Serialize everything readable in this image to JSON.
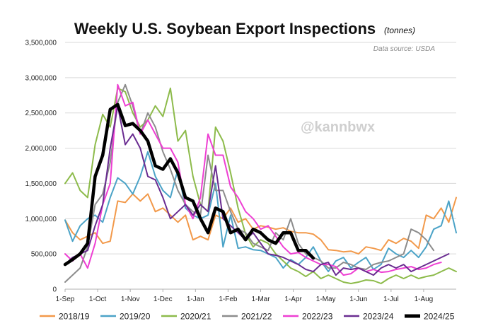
{
  "chart_data": {
    "type": "line",
    "title": "Weekly U.S. Soybean Export Inspections",
    "unit": "(tonnes)",
    "source": "Data source: USDA",
    "watermark": "@kannbwx",
    "x_tick_labels": [
      "1-Sep",
      "1-Oct",
      "1-Nov",
      "1-Dec",
      "1-Jan",
      "1-Feb",
      "1-Mar",
      "1-Apr",
      "1-May",
      "1-Jun",
      "1-Jul",
      "1-Aug"
    ],
    "y_tick_labels": [
      "0",
      "500,000",
      "1,000,000",
      "1,500,000",
      "2,000,000",
      "2,500,000",
      "3,000,000",
      "3,500,000"
    ],
    "ylim": [
      0,
      3500000
    ],
    "week_count": 53,
    "grid": "horizontal",
    "legend_position": "bottom",
    "series": [
      {
        "name": "2018/19",
        "color": "#f2994a",
        "values": [
          980000,
          800000,
          700000,
          750000,
          800000,
          650000,
          680000,
          1250000,
          1230000,
          1350000,
          1250000,
          1350000,
          1100000,
          1150000,
          1050000,
          950000,
          1050000,
          700000,
          750000,
          700000,
          1050000,
          1000000,
          1150000,
          950000,
          1000000,
          850000,
          900000,
          880000,
          850000,
          870000,
          820000,
          800000,
          800000,
          780000,
          700000,
          560000,
          550000,
          530000,
          540000,
          500000,
          600000,
          580000,
          550000,
          700000,
          650000,
          720000,
          680000,
          580000,
          1050000,
          1000000,
          1150000,
          950000,
          1300000
        ]
      },
      {
        "name": "2019/20",
        "color": "#4ba3c7",
        "values": [
          980000,
          680000,
          900000,
          1000000,
          1050000,
          950000,
          1300000,
          1580000,
          1500000,
          1350000,
          1600000,
          1950000,
          1600000,
          1400000,
          1300000,
          1700000,
          1150000,
          1050000,
          1000000,
          1050000,
          1500000,
          600000,
          1050000,
          580000,
          600000,
          560000,
          550000,
          500000,
          450000,
          300000,
          420000,
          350000,
          450000,
          600000,
          400000,
          250000,
          400000,
          450000,
          300000,
          380000,
          450000,
          280000,
          350000,
          580000,
          500000,
          450000,
          550000,
          450000,
          600000,
          850000,
          900000,
          1250000,
          800000
        ]
      },
      {
        "name": "2020/21",
        "color": "#8dbb4b",
        "values": [
          1500000,
          1650000,
          1400000,
          1300000,
          2050000,
          2480000,
          2300000,
          2850000,
          2800000,
          2500000,
          2300000,
          2400000,
          2600000,
          2450000,
          2850000,
          2100000,
          2250000,
          1600000,
          1200000,
          1100000,
          2300000,
          2100000,
          1650000,
          1150000,
          780000,
          600000,
          700000,
          650000,
          500000,
          400000,
          300000,
          250000,
          180000,
          250000,
          150000,
          200000,
          150000,
          100000,
          80000,
          100000,
          130000,
          120000,
          80000,
          150000,
          200000,
          150000,
          200000,
          150000,
          180000,
          200000,
          250000,
          300000,
          250000
        ]
      },
      {
        "name": "2021/22",
        "color": "#8c8c8c",
        "values": [
          100000,
          200000,
          300000,
          600000,
          1200000,
          1350000,
          1800000,
          2650000,
          2900000,
          2600000,
          2200000,
          2500000,
          2300000,
          1950000,
          1700000,
          1400000,
          1200000,
          1100000,
          1050000,
          1900000,
          1400000,
          1400000,
          1100000,
          850000,
          800000,
          650000,
          600000,
          550000,
          800000,
          700000,
          1000000,
          650000,
          500000,
          450000,
          400000,
          300000,
          300000,
          380000,
          350000,
          300000,
          280000,
          350000,
          380000,
          400000,
          450000,
          500000,
          850000,
          800000,
          700000,
          550000
        ]
      },
      {
        "name": "2022/23",
        "color": "#ee3fd3",
        "values": [
          500000,
          400000,
          500000,
          300000,
          650000,
          1200000,
          1500000,
          2900000,
          2600000,
          2650000,
          2200000,
          2400000,
          2200000,
          2000000,
          2000000,
          1800000,
          1200000,
          1000000,
          1300000,
          2200000,
          1900000,
          1900000,
          1450000,
          1300000,
          1100000,
          1000000,
          850000,
          900000,
          750000,
          600000,
          500000,
          520000,
          450000,
          400000,
          350000,
          350000,
          320000,
          200000,
          220000,
          300000,
          250000,
          280000,
          240000,
          250000,
          280000,
          300000,
          320000,
          280000,
          300000,
          350000,
          380000
        ]
      },
      {
        "name": "2023/24",
        "color": "#6a2c91",
        "values": [
          350000,
          450000,
          500000,
          550000,
          900000,
          1200000,
          2000000,
          2600000,
          2050000,
          2200000,
          2000000,
          1600000,
          1550000,
          1300000,
          1000000,
          1100000,
          1200000,
          1050000,
          1200000,
          1100000,
          1750000,
          1000000,
          900000,
          800000,
          700000,
          800000,
          650000,
          500000,
          480000,
          450000,
          400000,
          350000,
          280000,
          250000,
          350000,
          380000,
          200000,
          300000,
          280000,
          300000,
          250000,
          200000,
          300000,
          350000,
          300000,
          350000,
          250000,
          300000,
          350000,
          400000,
          450000,
          500000
        ]
      },
      {
        "name": "2024/25",
        "color": "#000000",
        "values": [
          350000,
          420000,
          500000,
          650000,
          1600000,
          1900000,
          2550000,
          2620000,
          2320000,
          2350000,
          2250000,
          2100000,
          1750000,
          1700000,
          1850000,
          1650000,
          1300000,
          1250000,
          1000000,
          800000,
          1150000,
          1100000,
          800000,
          850000,
          700000,
          850000,
          800000,
          700000,
          650000,
          800000,
          800000,
          550000,
          550000,
          440000
        ]
      }
    ]
  }
}
